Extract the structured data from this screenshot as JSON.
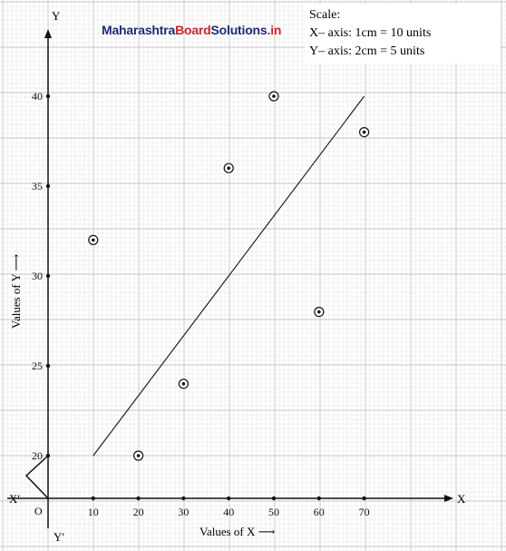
{
  "watermark": {
    "part1": "Maharashtra",
    "part2": "Board",
    "part3": "Solutions",
    "part4": ".in",
    "color_primary": "#1f2a78",
    "color_accent": "#c6272e"
  },
  "scale_note": {
    "heading": "Scale:",
    "x_line": "X– axis: 1cm = 10 units",
    "y_line": "Y– axis: 2cm = 5 units"
  },
  "axis_labels": {
    "origin": "O",
    "x_pos": "X",
    "x_neg": "X′",
    "y_pos": "Y",
    "y_neg": "Y′"
  },
  "chart_data": {
    "type": "scatter",
    "xlabel": "Values of X ⟶",
    "ylabel": "Values of Y ⟶",
    "x_ticks": [
      10,
      20,
      30,
      40,
      50,
      60,
      70
    ],
    "y_ticks": [
      20,
      25,
      30,
      35,
      40
    ],
    "xlim": [
      0,
      90
    ],
    "ylim": [
      17.5,
      42
    ],
    "y_axis_break": true,
    "grid": true,
    "points": [
      {
        "x": 10,
        "y": 32
      },
      {
        "x": 20,
        "y": 20
      },
      {
        "x": 30,
        "y": 24
      },
      {
        "x": 40,
        "y": 36
      },
      {
        "x": 50,
        "y": 40
      },
      {
        "x": 60,
        "y": 28
      },
      {
        "x": 70,
        "y": 38
      }
    ],
    "trend_line": {
      "x1": 10,
      "y1": 20,
      "x2": 70,
      "y2": 40
    }
  },
  "colors": {
    "grid_fine": "#e2e2e2",
    "grid_major": "#c4c4c4",
    "ink": "#111111"
  }
}
